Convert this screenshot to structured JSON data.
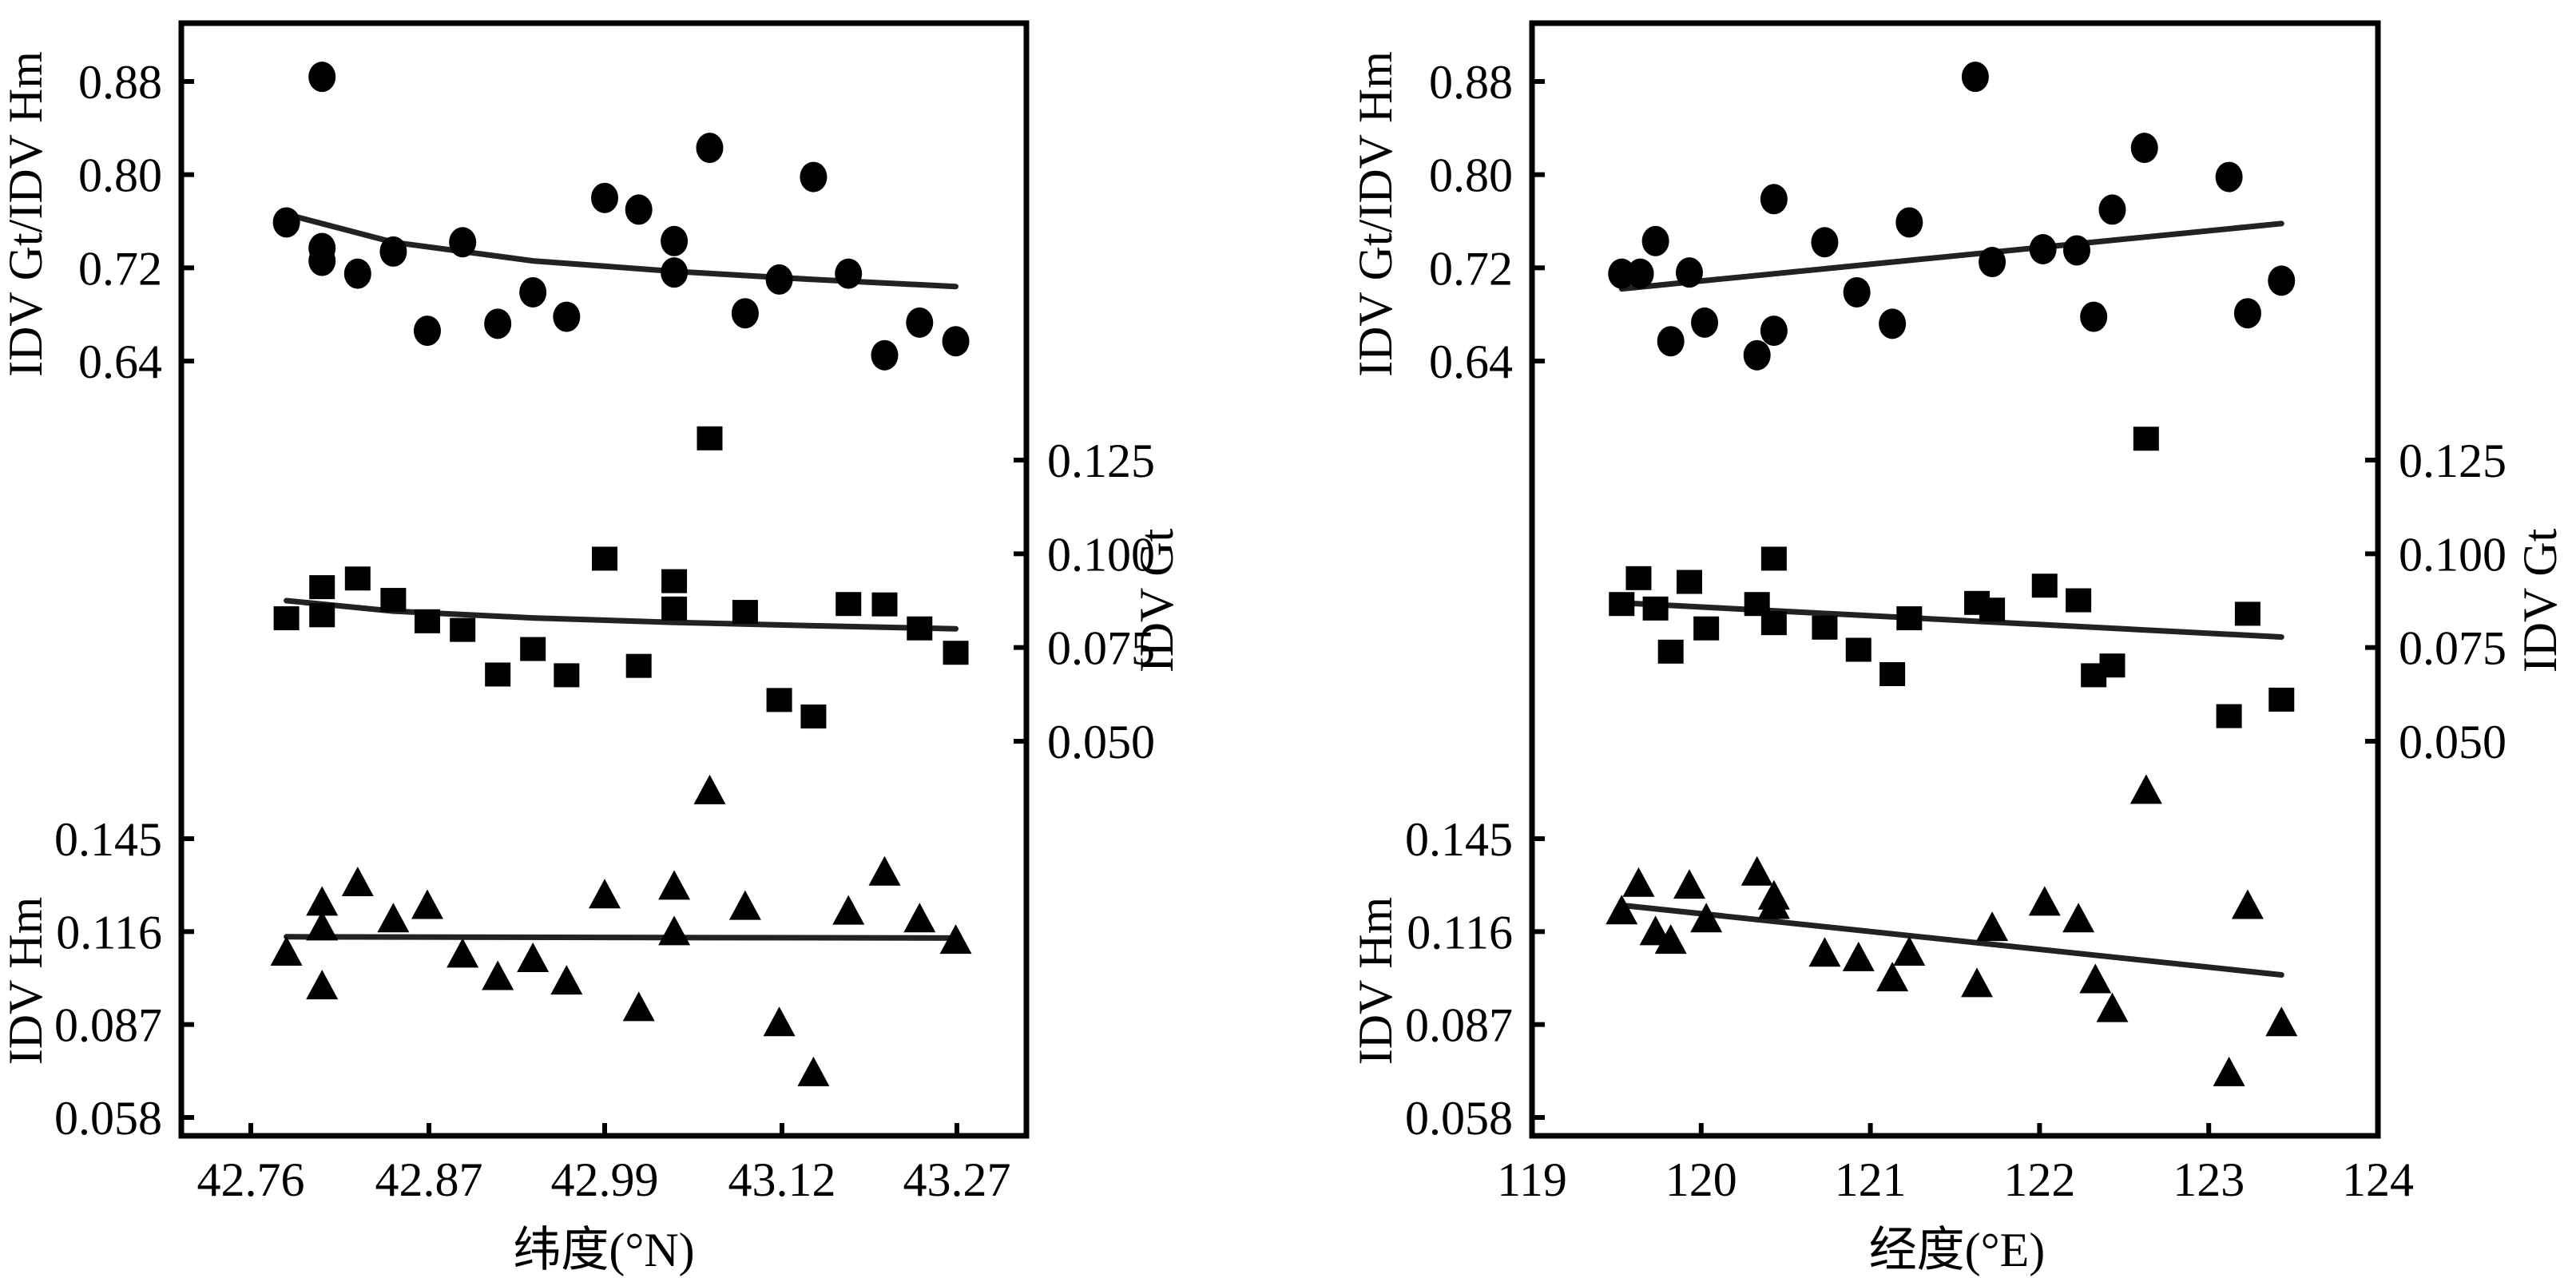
{
  "chart_data": [
    {
      "type": "scatter",
      "panel": "left",
      "xlabel": "纬度(°N)",
      "x_ticks": [
        "42.76",
        "42.87",
        "42.99",
        "43.12",
        "43.27"
      ],
      "x_tick_values": [
        42.76,
        42.87,
        42.99,
        43.12,
        43.27
      ],
      "left_axis_upper": {
        "label": "IDV Gt/IDV Hm",
        "ticks": [
          "0.88",
          "0.80",
          "0.72",
          "0.64"
        ],
        "tick_values": [
          0.88,
          0.8,
          0.72,
          0.64
        ]
      },
      "right_axis_middle": {
        "label": "IDV Gt",
        "ticks": [
          "0.125",
          "0.100",
          "0.075",
          "0.050"
        ],
        "tick_values": [
          0.125,
          0.1,
          0.075,
          0.05
        ]
      },
      "left_axis_lower": {
        "label": "IDV Hm",
        "ticks": [
          "0.145",
          "0.116",
          "0.087",
          "0.058"
        ],
        "tick_values": [
          0.145,
          0.116,
          0.087,
          0.058
        ]
      },
      "series": [
        {
          "name": "IDV Gt/IDV Hm",
          "marker": "circle",
          "axis": "left_axis_upper",
          "points": [
            [
              42.782,
              0.759
            ],
            [
              42.804,
              0.884
            ],
            [
              42.804,
              0.737
            ],
            [
              42.804,
              0.726
            ],
            [
              42.826,
              0.715
            ],
            [
              42.848,
              0.734
            ],
            [
              42.869,
              0.666
            ],
            [
              42.893,
              0.742
            ],
            [
              42.917,
              0.672
            ],
            [
              42.941,
              0.699
            ],
            [
              42.964,
              0.678
            ],
            [
              42.99,
              0.78
            ],
            [
              43.015,
              0.77
            ],
            [
              43.041,
              0.743
            ],
            [
              43.041,
              0.716
            ],
            [
              43.067,
              0.823
            ],
            [
              43.093,
              0.681
            ],
            [
              43.118,
              0.71
            ],
            [
              43.147,
              0.798
            ],
            [
              43.177,
              0.715
            ],
            [
              43.208,
              0.645
            ],
            [
              43.238,
              0.673
            ],
            [
              43.269,
              0.657
            ]
          ],
          "fit": [
            [
              42.782,
              0.766
            ],
            [
              42.848,
              0.742
            ],
            [
              42.941,
              0.726
            ],
            [
              43.041,
              0.717
            ],
            [
              43.147,
              0.71
            ],
            [
              43.269,
              0.704
            ]
          ]
        },
        {
          "name": "IDV Gt",
          "marker": "square",
          "axis": "right_axis_middle",
          "points": [
            [
              42.782,
              0.0828
            ],
            [
              42.804,
              0.0911
            ],
            [
              42.804,
              0.0836
            ],
            [
              42.826,
              0.0934
            ],
            [
              42.848,
              0.0877
            ],
            [
              42.869,
              0.082
            ],
            [
              42.893,
              0.0797
            ],
            [
              42.917,
              0.0678
            ],
            [
              42.941,
              0.0746
            ],
            [
              42.964,
              0.0676
            ],
            [
              42.99,
              0.0987
            ],
            [
              43.015,
              0.0701
            ],
            [
              43.041,
              0.0927
            ],
            [
              43.041,
              0.0854
            ],
            [
              43.067,
              0.1308
            ],
            [
              43.093,
              0.0845
            ],
            [
              43.118,
              0.061
            ],
            [
              43.147,
              0.0566
            ],
            [
              43.177,
              0.0866
            ],
            [
              43.208,
              0.0865
            ],
            [
              43.238,
              0.0801
            ],
            [
              43.269,
              0.0736
            ]
          ],
          "fit": [
            [
              42.782,
              0.0875
            ],
            [
              42.848,
              0.0847
            ],
            [
              42.941,
              0.0829
            ],
            [
              43.041,
              0.0817
            ],
            [
              43.147,
              0.0808
            ],
            [
              43.269,
              0.08
            ]
          ]
        },
        {
          "name": "IDV Hm",
          "marker": "triangle",
          "axis": "left_axis_lower",
          "points": [
            [
              42.782,
              0.1096
            ],
            [
              42.804,
              0.1252
            ],
            [
              42.804,
              0.1175
            ],
            [
              42.804,
              0.0991
            ],
            [
              42.826,
              0.1313
            ],
            [
              42.848,
              0.12
            ],
            [
              42.869,
              0.1242
            ],
            [
              42.893,
              0.109
            ],
            [
              42.917,
              0.102
            ],
            [
              42.941,
              0.1076
            ],
            [
              42.964,
              0.1006
            ],
            [
              42.99,
              0.1275
            ],
            [
              43.015,
              0.0923
            ],
            [
              43.041,
              0.1302
            ],
            [
              43.041,
              0.116
            ],
            [
              43.067,
              0.16
            ],
            [
              43.093,
              0.1239
            ],
            [
              43.118,
              0.0876
            ],
            [
              43.147,
              0.072
            ],
            [
              43.177,
              0.1224
            ],
            [
              43.208,
              0.1346
            ],
            [
              43.238,
              0.12
            ],
            [
              43.269,
              0.1133
            ]
          ],
          "fit": [
            [
              42.782,
              0.1144
            ],
            [
              43.269,
              0.114
            ]
          ]
        }
      ]
    },
    {
      "type": "scatter",
      "panel": "right",
      "xlabel": "经度(°E)",
      "x_ticks": [
        "119",
        "120",
        "121",
        "122",
        "123",
        "124"
      ],
      "x_tick_values": [
        119,
        120,
        121,
        122,
        123,
        124
      ],
      "xlim": [
        119,
        124
      ],
      "left_axis_upper": {
        "label": "IDV Gt/IDV Hm",
        "ticks": [
          "0.88",
          "0.80",
          "0.72",
          "0.64"
        ],
        "tick_values": [
          0.88,
          0.8,
          0.72,
          0.64
        ]
      },
      "right_axis_middle": {
        "label": "IDV Gt",
        "ticks": [
          "0.125",
          "0.100",
          "0.075",
          "0.050"
        ],
        "tick_values": [
          0.125,
          0.1,
          0.075,
          0.05
        ]
      },
      "left_axis_lower": {
        "label": "IDV Hm",
        "ticks": [
          "0.145",
          "0.116",
          "0.087",
          "0.058"
        ],
        "tick_values": [
          0.145,
          0.116,
          0.087,
          0.058
        ]
      },
      "series": [
        {
          "name": "IDV Gt/IDV Hm",
          "marker": "circle",
          "axis": "left_axis_upper",
          "points": [
            [
              119.53,
              0.715
            ],
            [
              119.64,
              0.715
            ],
            [
              119.73,
              0.743
            ],
            [
              119.82,
              0.657
            ],
            [
              119.93,
              0.716
            ],
            [
              120.02,
              0.673
            ],
            [
              120.33,
              0.645
            ],
            [
              120.43,
              0.779
            ],
            [
              120.43,
              0.666
            ],
            [
              120.73,
              0.742
            ],
            [
              120.92,
              0.699
            ],
            [
              121.13,
              0.672
            ],
            [
              121.23,
              0.759
            ],
            [
              121.62,
              0.884
            ],
            [
              121.72,
              0.725
            ],
            [
              122.02,
              0.736
            ],
            [
              122.22,
              0.735
            ],
            [
              122.32,
              0.678
            ],
            [
              122.43,
              0.77
            ],
            [
              122.62,
              0.823
            ],
            [
              123.12,
              0.798
            ],
            [
              123.23,
              0.681
            ],
            [
              123.43,
              0.709
            ]
          ],
          "fit": [
            [
              119.53,
              0.702
            ],
            [
              123.43,
              0.758
            ]
          ]
        },
        {
          "name": "IDV Gt",
          "marker": "square",
          "axis": "right_axis_middle",
          "points": [
            [
              119.53,
              0.0866
            ],
            [
              119.63,
              0.0935
            ],
            [
              119.73,
              0.0854
            ],
            [
              119.82,
              0.0739
            ],
            [
              119.93,
              0.0925
            ],
            [
              120.03,
              0.0801
            ],
            [
              120.33,
              0.0866
            ],
            [
              120.43,
              0.0987
            ],
            [
              120.43,
              0.0815
            ],
            [
              120.73,
              0.0803
            ],
            [
              120.93,
              0.0744
            ],
            [
              121.13,
              0.0679
            ],
            [
              121.23,
              0.0828
            ],
            [
              121.63,
              0.0869
            ],
            [
              121.72,
              0.0851
            ],
            [
              122.03,
              0.0915
            ],
            [
              122.23,
              0.0876
            ],
            [
              122.32,
              0.0676
            ],
            [
              122.43,
              0.0702
            ],
            [
              122.63,
              0.1307
            ],
            [
              123.12,
              0.0567
            ],
            [
              123.23,
              0.084
            ],
            [
              123.43,
              0.0611
            ]
          ],
          "fit": [
            [
              119.53,
              0.0869
            ],
            [
              123.43,
              0.0778
            ]
          ]
        },
        {
          "name": "IDV Hm",
          "marker": "triangle",
          "axis": "left_axis_lower",
          "points": [
            [
              119.53,
              0.1225
            ],
            [
              119.63,
              0.1311
            ],
            [
              119.73,
              0.116
            ],
            [
              119.82,
              0.1133
            ],
            [
              119.93,
              0.1305
            ],
            [
              120.03,
              0.12
            ],
            [
              120.33,
              0.1346
            ],
            [
              120.43,
              0.1271
            ],
            [
              120.43,
              0.1242
            ],
            [
              120.73,
              0.1093
            ],
            [
              120.93,
              0.1079
            ],
            [
              121.13,
              0.1016
            ],
            [
              121.23,
              0.1096
            ],
            [
              121.63,
              0.0998
            ],
            [
              121.72,
              0.1173
            ],
            [
              122.03,
              0.1252
            ],
            [
              122.23,
              0.12
            ],
            [
              122.33,
              0.101
            ],
            [
              122.43,
              0.092
            ],
            [
              122.63,
              0.1601
            ],
            [
              123.12,
              0.072
            ],
            [
              123.23,
              0.1242
            ],
            [
              123.43,
              0.0876
            ]
          ],
          "fit": [
            [
              119.53,
              0.1242
            ],
            [
              123.43,
              0.1025
            ]
          ]
        }
      ]
    }
  ]
}
